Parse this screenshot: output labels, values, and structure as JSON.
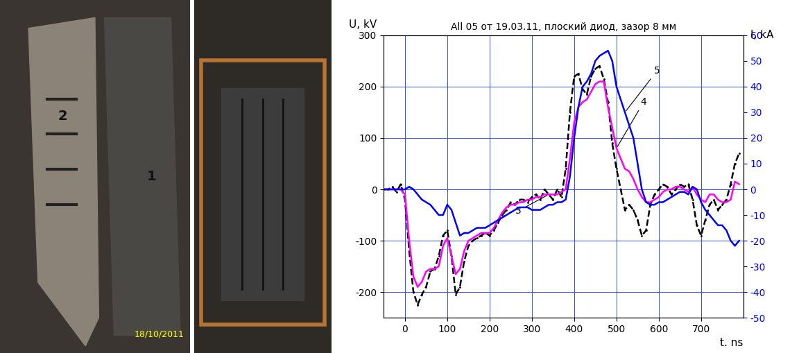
{
  "chart_data": {
    "type": "line",
    "title": "All 05 от 19.03.11, плоский диод, зазор 8 мм",
    "x_label": "t. ns",
    "y_label": "U, kV",
    "y2_label": "I, kA",
    "xlim": [
      -50,
      800
    ],
    "xticks": [
      0,
      100,
      200,
      300,
      400,
      500,
      600,
      700
    ],
    "ylim": [
      -250,
      300
    ],
    "yticks": [
      -200,
      -100,
      0,
      100,
      200,
      300
    ],
    "y2lim": [
      -50,
      60
    ],
    "y2ticks": [
      -50,
      -40,
      -30,
      -20,
      -10,
      0,
      10,
      20,
      30,
      40,
      50,
      60
    ],
    "grid": true,
    "x": [
      -50,
      -40,
      -30,
      -20,
      -10,
      0,
      10,
      20,
      30,
      40,
      50,
      60,
      70,
      80,
      90,
      100,
      110,
      120,
      130,
      140,
      150,
      160,
      170,
      180,
      190,
      200,
      210,
      220,
      230,
      240,
      250,
      260,
      270,
      280,
      290,
      300,
      310,
      320,
      330,
      340,
      350,
      360,
      370,
      380,
      390,
      400,
      410,
      420,
      430,
      440,
      450,
      460,
      470,
      480,
      490,
      500,
      510,
      520,
      530,
      540,
      550,
      560,
      570,
      580,
      590,
      600,
      610,
      620,
      630,
      640,
      650,
      660,
      670,
      680,
      690,
      700,
      710,
      720,
      730,
      740,
      750,
      760,
      770,
      780,
      790
    ],
    "series": [
      {
        "name": "3",
        "color": "#000000",
        "line_style": "dashed",
        "marker": "point",
        "values": [
          0,
          0,
          5,
          -5,
          10,
          -20,
          -120,
          -200,
          -225,
          -205,
          -190,
          -160,
          -155,
          -130,
          -90,
          -80,
          -130,
          -205,
          -190,
          -140,
          -110,
          -100,
          -95,
          -90,
          -85,
          -90,
          -80,
          -65,
          -50,
          -40,
          -25,
          -30,
          -20,
          -20,
          -25,
          -15,
          -10,
          -20,
          0,
          -10,
          -20,
          0,
          -15,
          40,
          150,
          220,
          225,
          195,
          185,
          220,
          235,
          240,
          215,
          170,
          90,
          40,
          0,
          -40,
          -30,
          -40,
          -60,
          -90,
          -80,
          -30,
          -10,
          0,
          10,
          5,
          -10,
          0,
          10,
          5,
          10,
          -20,
          -70,
          -90,
          -60,
          -30,
          -20,
          -40,
          -30,
          -20,
          10,
          50,
          70
        ]
      },
      {
        "name": "4",
        "color": "#ff00ff",
        "line_style": "solid",
        "values": [
          0,
          0,
          0,
          0,
          0,
          -10,
          -100,
          -170,
          -190,
          -180,
          -160,
          -155,
          -155,
          -150,
          -110,
          -95,
          -130,
          -165,
          -155,
          -120,
          -100,
          -95,
          -90,
          -85,
          -85,
          -85,
          -75,
          -60,
          -45,
          -35,
          -30,
          -30,
          -25,
          -25,
          -20,
          -20,
          -15,
          -15,
          -10,
          -10,
          -10,
          -10,
          -5,
          0,
          60,
          130,
          160,
          170,
          175,
          190,
          205,
          210,
          210,
          160,
          120,
          80,
          60,
          40,
          35,
          20,
          0,
          -15,
          -25,
          -25,
          -20,
          -15,
          -5,
          0,
          0,
          5,
          5,
          0,
          -5,
          5,
          -10,
          -20,
          -25,
          -10,
          -10,
          -20,
          -25,
          -25,
          -20,
          15,
          10
        ]
      },
      {
        "name": "5",
        "color": "#0000ff",
        "line_style": "solid",
        "axis": "y2",
        "values": [
          0,
          0,
          0,
          0,
          0,
          0,
          1,
          0,
          -2,
          -4,
          -5,
          -6,
          -8,
          -10,
          -10,
          -6,
          -8,
          -13,
          -18,
          -17,
          -17,
          -16,
          -15,
          -15,
          -15,
          -14,
          -13,
          -12,
          -11,
          -10,
          -9,
          -8,
          -7,
          -7,
          -7,
          -8,
          -8,
          -8,
          -7,
          -6,
          -6,
          -5,
          -5,
          -4,
          5,
          20,
          32,
          40,
          42,
          45,
          50,
          52,
          53,
          54,
          50,
          40,
          35,
          30,
          25,
          20,
          10,
          0,
          -5,
          -6,
          -6,
          -5,
          -5,
          -4,
          -3,
          -2,
          -1,
          -1,
          -2,
          1,
          0,
          -5,
          -8,
          -10,
          -12,
          -14,
          -14,
          -16,
          -20,
          -22,
          -20
        ]
      }
    ]
  },
  "photos": {
    "labels": [
      "2",
      "1"
    ],
    "date": "18/10/2011"
  }
}
